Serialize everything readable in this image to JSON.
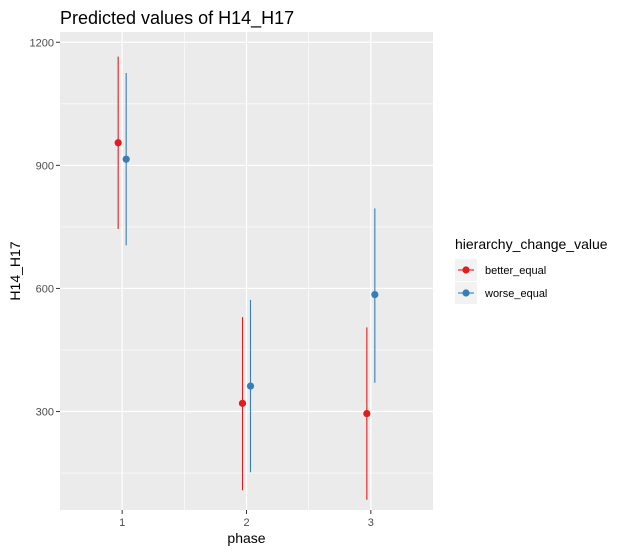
{
  "chart_data": {
    "type": "scatter",
    "title": "Predicted values of H14_H17",
    "xlabel": "phase",
    "ylabel": "H14_H17",
    "categories": [
      "1",
      "2",
      "3"
    ],
    "yticks": [
      300,
      600,
      900,
      1200
    ],
    "ylim": [
      60,
      1225
    ],
    "grid": true,
    "legend": {
      "title": "hierarchy_change_value",
      "position": "right"
    },
    "series": [
      {
        "name": "better_equal",
        "color": "#E41A1C",
        "values": [
          955,
          320,
          295
        ],
        "lower": [
          745,
          108,
          85
        ],
        "upper": [
          1165,
          530,
          505
        ]
      },
      {
        "name": "worse_equal",
        "color": "#377EB8",
        "values": [
          915,
          362,
          585
        ],
        "lower": [
          705,
          152,
          370
        ],
        "upper": [
          1125,
          572,
          795
        ]
      }
    ]
  }
}
